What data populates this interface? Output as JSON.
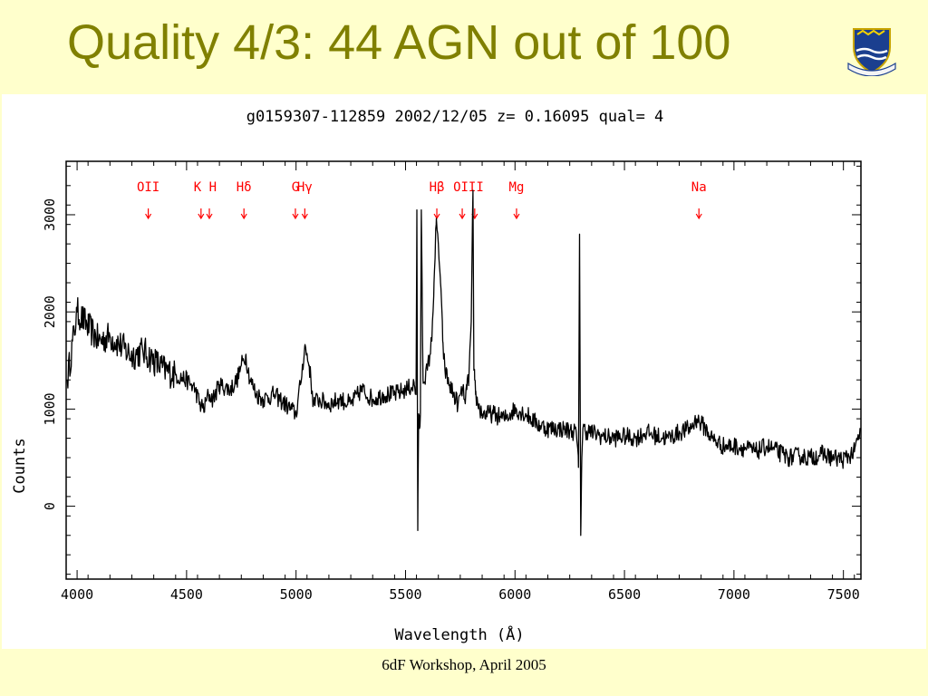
{
  "slide": {
    "title": "Quality 4/3: 44 AGN out of 100",
    "footer": "6dF Workshop, April 2005",
    "logo_icon": "university-crest-icon"
  },
  "chart_data": {
    "type": "line",
    "title": "g0159307-112859 2002/12/05 z= 0.16095 qual= 4",
    "xlabel": "Wavelength (Å)",
    "ylabel": "Counts",
    "xlim": [
      3950,
      7580
    ],
    "ylim": [
      -750,
      3550
    ],
    "x_ticks": [
      4000,
      4500,
      5000,
      5500,
      6000,
      6500,
      7000,
      7500
    ],
    "y_ticks": [
      0,
      1000,
      2000,
      3000
    ],
    "grid": false,
    "line_color": "#000000",
    "annotation_color": "#ff0000",
    "line_markers": [
      {
        "label": "OII",
        "arrows": [
          4325
        ]
      },
      {
        "label": "K H",
        "arrows": [
          4566,
          4604
        ]
      },
      {
        "label": "Hδ",
        "arrows": [
          4762
        ]
      },
      {
        "label": "G",
        "arrows": [
          4997
        ]
      },
      {
        "label": "Hγ",
        "arrows": [
          5040
        ]
      },
      {
        "label": "Hβ",
        "arrows": [
          5643
        ]
      },
      {
        "label": "OIII",
        "arrows": [
          5759,
          5816
        ]
      },
      {
        "label": "Mg",
        "arrows": [
          6007
        ]
      },
      {
        "label": "Na",
        "arrows": [
          6840
        ]
      }
    ],
    "series": [
      {
        "x": [
          3955,
          4000,
          4050,
          4100,
          4150,
          4200,
          4250,
          4300,
          4350,
          4400,
          4450,
          4500,
          4540,
          4560,
          4580,
          4600,
          4620,
          4650,
          4700,
          4730,
          4750,
          4770,
          4790,
          4820,
          4850,
          4900,
          4950,
          5000,
          5020,
          5040,
          5060,
          5080,
          5100,
          5150,
          5200,
          5250,
          5300,
          5350,
          5400,
          5450,
          5500,
          5540,
          5548,
          5552,
          5556,
          5560,
          5564,
          5568,
          5572,
          5580,
          5600,
          5620,
          5630,
          5640,
          5650,
          5660,
          5670,
          5680,
          5700,
          5720,
          5740,
          5760,
          5770,
          5780,
          5790,
          5800,
          5808,
          5812,
          5816,
          5820,
          5830,
          5850,
          5900,
          5950,
          6000,
          6050,
          6100,
          6150,
          6200,
          6250,
          6280,
          6290,
          6295,
          6300,
          6305,
          6310,
          6320,
          6350,
          6400,
          6450,
          6500,
          6550,
          6600,
          6650,
          6700,
          6750,
          6800,
          6830,
          6850,
          6870,
          6900,
          6950,
          7000,
          7050,
          7100,
          7150,
          7200,
          7250,
          7300,
          7350,
          7400,
          7450,
          7500,
          7550,
          7580
        ],
        "y": [
          1300,
          2000,
          1850,
          1700,
          1750,
          1650,
          1550,
          1600,
          1500,
          1400,
          1350,
          1300,
          1200,
          1050,
          1000,
          1150,
          1100,
          1250,
          1200,
          1300,
          1450,
          1550,
          1300,
          1150,
          1100,
          1150,
          1050,
          950,
          1250,
          1650,
          1450,
          1050,
          1100,
          1050,
          1100,
          1050,
          1200,
          1100,
          1150,
          1150,
          1200,
          1250,
          1150,
          3050,
          -250,
          950,
          800,
          950,
          3050,
          1300,
          1400,
          1700,
          2300,
          2900,
          2700,
          2300,
          1700,
          1400,
          1250,
          1150,
          1050,
          1200,
          1100,
          1200,
          1350,
          1900,
          3250,
          1400,
          1300,
          1150,
          1050,
          950,
          950,
          900,
          1000,
          950,
          850,
          800,
          800,
          780,
          760,
          400,
          2800,
          -300,
          500,
          800,
          780,
          760,
          720,
          700,
          720,
          700,
          760,
          720,
          700,
          760,
          800,
          900,
          850,
          800,
          700,
          620,
          620,
          600,
          560,
          620,
          560,
          500,
          520,
          500,
          540,
          500,
          480,
          560,
          800
        ]
      }
    ]
  }
}
